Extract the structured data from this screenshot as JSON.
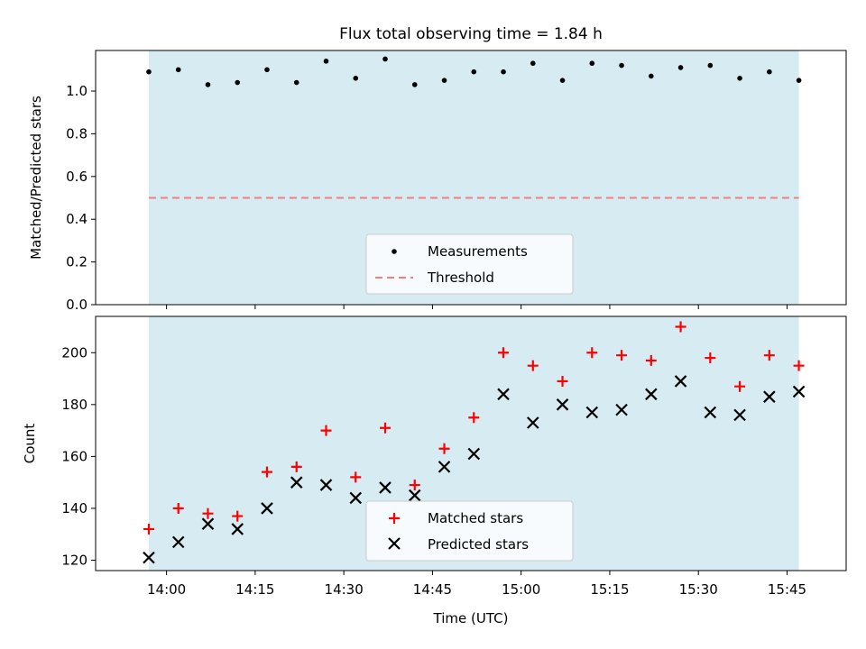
{
  "chart_data": {
    "title": "Flux total observing time = 1.84 h",
    "xlabel": "Time (UTC)",
    "x_ticks": [
      "14:00",
      "14:15",
      "14:30",
      "14:45",
      "15:00",
      "15:15",
      "15:30",
      "15:45"
    ],
    "x": [
      "13:57",
      "14:02",
      "14:07",
      "14:12",
      "14:17",
      "14:22",
      "14:27",
      "14:32",
      "14:37",
      "14:42",
      "14:47",
      "14:52",
      "14:57",
      "15:02",
      "15:07",
      "15:12",
      "15:17",
      "15:22",
      "15:27",
      "15:32",
      "15:37",
      "15:42",
      "15:47"
    ],
    "shaded_span": [
      "13:57",
      "15:47"
    ],
    "shade_color": "#add8e6",
    "panels": [
      {
        "type": "scatter",
        "ylabel": "Matched/Predicted stars",
        "ylim": [
          0,
          1.19
        ],
        "y_ticks": [
          "0.0",
          "0.2",
          "0.4",
          "0.6",
          "0.8",
          "1.0"
        ],
        "series": [
          {
            "name": "Measurements",
            "marker": "dot",
            "color": "#000000",
            "values": [
              1.09,
              1.1,
              1.03,
              1.04,
              1.1,
              1.04,
              1.14,
              1.06,
              1.15,
              1.03,
              1.05,
              1.09,
              1.09,
              1.13,
              1.05,
              1.13,
              1.12,
              1.07,
              1.11,
              1.12,
              1.06,
              1.09,
              1.05
            ]
          }
        ],
        "threshold": {
          "name": "Threshold",
          "value": 0.5,
          "color": "#f08080"
        },
        "legend": "lower-center"
      },
      {
        "type": "scatter",
        "ylabel": "Count",
        "ylim": [
          116,
          214
        ],
        "y_ticks": [
          "120",
          "140",
          "160",
          "180",
          "200"
        ],
        "series": [
          {
            "name": "Matched stars",
            "marker": "plus",
            "color": "#ff0000",
            "values": [
              132,
              140,
              138,
              137,
              154,
              156,
              170,
              152,
              171,
              149,
              163,
              175,
              200,
              195,
              189,
              200,
              199,
              197,
              210,
              198,
              187,
              199,
              195
            ]
          },
          {
            "name": "Predicted stars",
            "marker": "x",
            "color": "#000000",
            "values": [
              121,
              127,
              134,
              132,
              140,
              150,
              149,
              144,
              148,
              145,
              156,
              161,
              184,
              173,
              180,
              177,
              178,
              184,
              189,
              177,
              176,
              183,
              185
            ]
          }
        ],
        "legend": "lower-center"
      }
    ]
  }
}
